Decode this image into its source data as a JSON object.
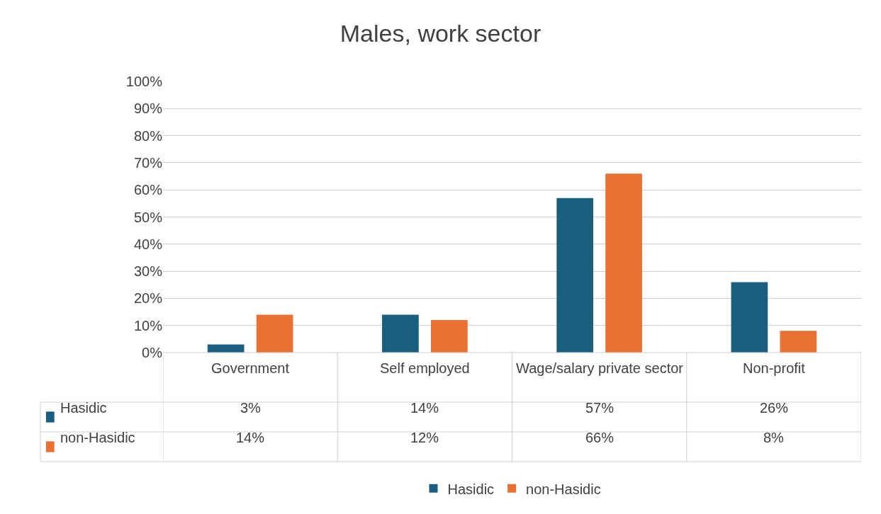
{
  "chart_data": {
    "type": "bar",
    "title": "Males, work sector",
    "categories": [
      "Government",
      "Self employed",
      "Wage/salary private sector",
      "Non-profit"
    ],
    "series": [
      {
        "name": "Hasidic",
        "color": "#1a5f80",
        "values": [
          3,
          14,
          57,
          26
        ],
        "value_labels": [
          "3%",
          "14%",
          "57%",
          "26%"
        ]
      },
      {
        "name": "non-Hasidic",
        "color": "#e97132",
        "values": [
          14,
          12,
          66,
          8
        ],
        "value_labels": [
          "14%",
          "12%",
          "66%",
          "8%"
        ]
      }
    ],
    "ylim": [
      0,
      100
    ],
    "yticks": [
      {
        "value": 0,
        "label": "0%"
      },
      {
        "value": 10,
        "label": "10%"
      },
      {
        "value": 20,
        "label": "20%"
      },
      {
        "value": 30,
        "label": "30%"
      },
      {
        "value": 40,
        "label": "40%"
      },
      {
        "value": 50,
        "label": "50%"
      },
      {
        "value": 60,
        "label": "60%"
      },
      {
        "value": 70,
        "label": "70%"
      },
      {
        "value": 80,
        "label": "80%"
      },
      {
        "value": 90,
        "label": "90%"
      },
      {
        "value": 100,
        "label": "100%"
      }
    ],
    "grid": "y",
    "legend": "bottom"
  }
}
